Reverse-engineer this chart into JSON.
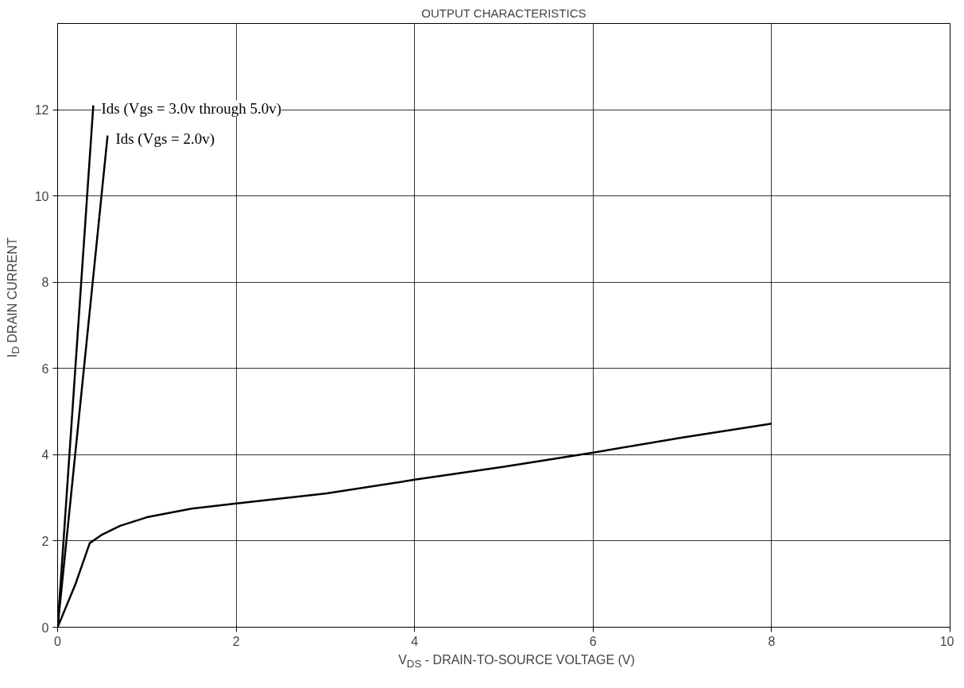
{
  "chart_data": {
    "type": "line",
    "title": "OUTPUT CHARACTERISTICS",
    "xlabel": "V$_{DS}$ - DRAIN-TO-SOURCE VOLTAGE (V)",
    "ylabel": "I$_{D}$ DRAIN CURRENT",
    "xlim": [
      0,
      10
    ],
    "ylim": [
      0,
      14
    ],
    "xticks": [
      0,
      2,
      4,
      6,
      8,
      10
    ],
    "yticks": [
      0,
      2,
      4,
      6,
      8,
      10,
      12
    ],
    "grid": true,
    "line_style": "solid",
    "series": [
      {
        "name": "Ids (Vgs = 3.0v through 5.0v)",
        "color": "#000000",
        "x": [
          0,
          0.4
        ],
        "values": [
          0,
          12.1
        ]
      },
      {
        "name": "Ids (Vgs = 2.0v)",
        "color": "#000000",
        "x": [
          0,
          0.56
        ],
        "values": [
          0,
          11.4
        ]
      },
      {
        "color": "#000000",
        "x": [
          0,
          0.2,
          0.36,
          0.5,
          0.7,
          1,
          1.5,
          2,
          3,
          4,
          5,
          6,
          7,
          8
        ],
        "values": [
          0,
          1.0,
          1.95,
          2.15,
          2.35,
          2.55,
          2.75,
          2.87,
          3.1,
          3.42,
          3.72,
          4.05,
          4.4,
          4.72
        ]
      }
    ]
  }
}
